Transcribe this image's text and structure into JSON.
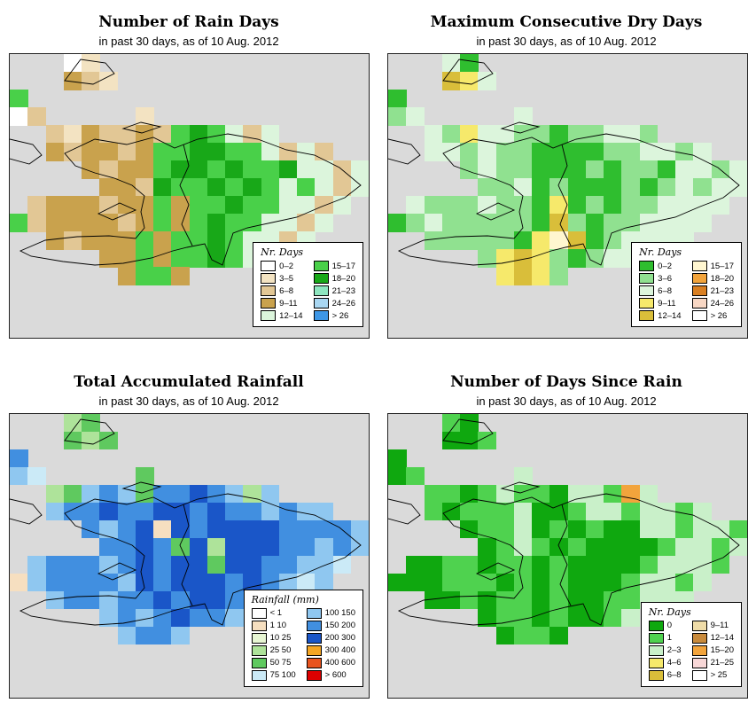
{
  "panels": [
    {
      "id": "rain-days",
      "title": "Number of Rain Days",
      "subtitle": "in past 30 days, as of  10 Aug. 2012",
      "legend_title": "Nr. Days",
      "palette": {
        "a": "#FFFFFF",
        "b": "#F3E3C2",
        "c": "#E2C795",
        "d": "#C9A24D",
        "e": "#DCF5DC",
        "f": "#49D049",
        "g": "#18A818",
        "h": "#8EE6C0",
        "i": "#A9D7F2",
        "j": "#3E97E6"
      },
      "legend": [
        {
          "label": "0–2",
          "key": "a"
        },
        {
          "label": "3–5",
          "key": "b"
        },
        {
          "label": "6–8",
          "key": "c"
        },
        {
          "label": "9–11",
          "key": "d"
        },
        {
          "label": "12–14",
          "key": "e"
        },
        {
          "label": "15–17",
          "key": "f"
        },
        {
          "label": "18–20",
          "key": "g"
        },
        {
          "label": "21–23",
          "key": "h"
        },
        {
          "label": "24–26",
          "key": "i"
        },
        {
          "label": "> 26",
          "key": "j"
        }
      ],
      "grid": [
        "...ab...............",
        "...dcb..............",
        "f...................",
        "ac.....b............",
        "..cbdccdcfgfece.....",
        "..dcddcdffggffecec..",
        "....dcddfggfgffgeece",
        ".....ddcgffgfgfefece",
        ".cdddcddfdffgffeece.",
        "fcddddcdfdfgffeece..",
        "..dcdddfdffgfeece...",
        ".....ddfdffgfe......",
        "......dffd..........",
        "....................",
        "....................",
        "...................."
      ]
    },
    {
      "id": "dry-days",
      "title": "Maximum Consecutive Dry Days",
      "subtitle": "in past 30 days, as of  10 Aug. 2012",
      "legend_title": "Nr. Days",
      "palette": {
        "a": "#2FBE2F",
        "b": "#90E190",
        "c": "#DCF5DC",
        "d": "#F6E96B",
        "e": "#D9BE3A",
        "f": "#FFF6D0",
        "g": "#F2A43C",
        "h": "#D97F22",
        "i": "#F8D7C4",
        "j": "#FFFFFF"
      },
      "legend": [
        {
          "label": "0–2",
          "key": "a"
        },
        {
          "label": "3–6",
          "key": "b"
        },
        {
          "label": "6–8",
          "key": "c"
        },
        {
          "label": "9–11",
          "key": "d"
        },
        {
          "label": "12–14",
          "key": "e"
        },
        {
          "label": "15–17",
          "key": "f"
        },
        {
          "label": "18–20",
          "key": "g"
        },
        {
          "label": "21–23",
          "key": "h"
        },
        {
          "label": "24–26",
          "key": "i"
        },
        {
          "label": "> 26",
          "key": "j"
        }
      ],
      "grid": [
        "...ca...............",
        "...edc..............",
        "a...................",
        "bc.....c............",
        "..cbdccbbabbccb.....",
        "..ccbcbbaaaabbccbc..",
        "....bcbbaaababbaccbc",
        ".....bbcabaaababcbcc",
        ".cbbbcbbadababbcccc.",
        "abcbbbbbaebabbcccc..",
        "..bbbbbadfeabcccc...",
        ".....bdedbabcc......",
        "......dedb..........",
        "....................",
        "....................",
        "...................."
      ]
    },
    {
      "id": "accumulated-rainfall",
      "title": "Total Accumulated Rainfall",
      "subtitle": "in past 30 days, as of  10 Aug. 2012",
      "legend_title": "Rainfall (mm)",
      "palette": {
        "a": "#FFFFFF",
        "b": "#F6DFC0",
        "c": "#E7F6D3",
        "d": "#AEE39A",
        "e": "#5FC95F",
        "f": "#CBEAF7",
        "g": "#8FC7F0",
        "h": "#418FE0",
        "i": "#1A56C8",
        "j": "#F5A623",
        "k": "#E8541E",
        "l": "#DD0000"
      },
      "legend": [
        {
          "label": "< 1",
          "key": "a"
        },
        {
          "label": "1  10",
          "key": "b"
        },
        {
          "label": "10  25",
          "key": "c"
        },
        {
          "label": "25  50",
          "key": "d"
        },
        {
          "label": "50  75",
          "key": "e"
        },
        {
          "label": "75  100",
          "key": "f"
        },
        {
          "label": "100  150",
          "key": "g"
        },
        {
          "label": "150  200",
          "key": "h"
        },
        {
          "label": "200  300",
          "key": "i"
        },
        {
          "label": "300  400",
          "key": "j"
        },
        {
          "label": "400  600",
          "key": "k"
        },
        {
          "label": "> 600",
          "key": "l"
        }
      ],
      "grid": [
        "...de...............",
        "...ede..............",
        "h...................",
        "gf.....e............",
        "..deghgehhihgdg.....",
        "..ghhihhiihihhghgg..",
        "....hghibihiiiihhhhg",
        ".....hhiheidiiihhghg",
        ".ghhhghihiieiihhggf.",
        "bghhhhgihiiihihgfg..",
        "..ghhghhihiihhggf...",
        ".....ghghihhgg......",
        "......ghhg..........",
        "....................",
        "....................",
        "...................."
      ]
    },
    {
      "id": "days-since-rain",
      "title": "Number of Days Since Rain",
      "subtitle": "in past 30 days, as of  10 Aug. 2012",
      "legend_title": "Nr. Days",
      "palette": {
        "a": "#0FA80F",
        "b": "#4FD24F",
        "c": "#C9F0C9",
        "d": "#F6E96B",
        "e": "#D9BE3A",
        "f": "#EFDCA8",
        "g": "#C98B3C",
        "h": "#F2A43C",
        "i": "#F8D7D7",
        "j": "#FFFFFF"
      },
      "legend": [
        {
          "label": "0",
          "key": "a"
        },
        {
          "label": "1",
          "key": "b"
        },
        {
          "label": "2–3",
          "key": "c"
        },
        {
          "label": "4–6",
          "key": "d"
        },
        {
          "label": "6–8",
          "key": "e"
        },
        {
          "label": "9–11",
          "key": "f"
        },
        {
          "label": "12–14",
          "key": "g"
        },
        {
          "label": "15–20",
          "key": "h"
        },
        {
          "label": "21–25",
          "key": "i"
        },
        {
          "label": "> 25",
          "key": "j"
        }
      ],
      "grid": [
        "...ba...............",
        "...aab..............",
        "a...................",
        "ab.....c............",
        "..bbabcbbaccbhc.....",
        "..babbbcaabccbccbc..",
        "....abbcababaaccbccb",
        ".....abcbabaaaabccbc",
        ".aabbabbabaaaabcccb.",
        "aaabbbababaaabccbc..",
        "..aababbabaabbccc...",
        ".....abbabaabc......",
        "......abba..........",
        "....................",
        "....................",
        "...................."
      ]
    }
  ]
}
